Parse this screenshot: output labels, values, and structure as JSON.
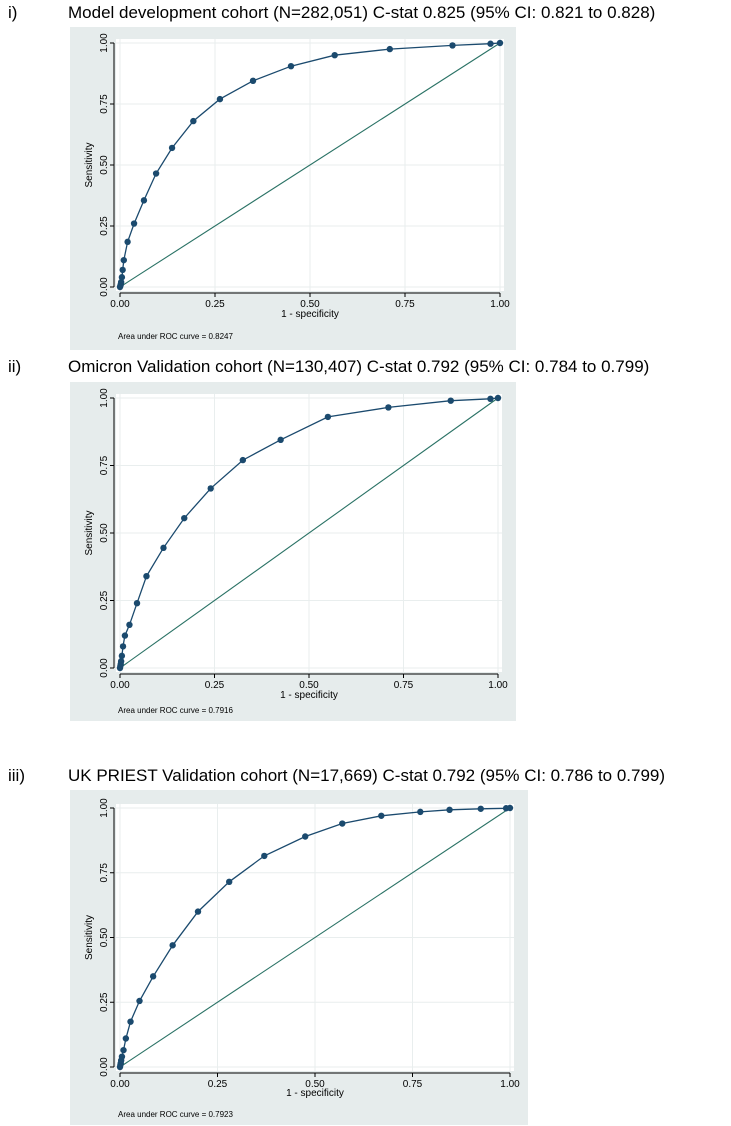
{
  "colors": {
    "frame_bg": "#e6ecec",
    "plot_bg": "#ffffff",
    "roc_line": "#1b4a6e",
    "roc_marker": "#1b4a6e",
    "reference_line": "#2a7265",
    "grid": "#e9eeee"
  },
  "chart_data": [
    {
      "type": "line",
      "panel_label": "i)",
      "title": "Model development cohort (N=282,051) C-stat 0.825 (95% CI:  0.821 to 0.828)",
      "xlabel": "1 - specificity",
      "ylabel": "Sensitivity",
      "xlim": [
        0,
        1
      ],
      "ylim": [
        0,
        1
      ],
      "x_ticks": [
        "0.00",
        "0.25",
        "0.50",
        "0.75",
        "1.00"
      ],
      "y_ticks": [
        "0.00",
        "0.25",
        "0.50",
        "0.75",
        "1.00"
      ],
      "grid": true,
      "note": "Area under ROC curve = 0.8247",
      "series": [
        {
          "x": [
            0,
            0.001,
            0.002,
            0.003,
            0.005,
            0.007,
            0.01,
            0.02,
            0.037,
            0.063,
            0.095,
            0.137,
            0.193,
            0.263,
            0.35,
            0.45,
            0.565,
            0.71,
            0.875,
            0.975,
            1.0
          ],
          "y": [
            0,
            0.005,
            0.01,
            0.02,
            0.04,
            0.07,
            0.11,
            0.185,
            0.26,
            0.355,
            0.465,
            0.57,
            0.68,
            0.77,
            0.845,
            0.905,
            0.95,
            0.975,
            0.99,
            0.997,
            1.0
          ]
        },
        {
          "x": [
            0,
            1
          ],
          "y": [
            0,
            1
          ]
        }
      ]
    },
    {
      "type": "line",
      "panel_label": "ii)",
      "title": "Omicron Validation cohort (N=130,407) C-stat 0.792 (95% CI: 0.784 to 0.799)",
      "xlabel": "1 - specificity",
      "ylabel": "Sensitivity",
      "xlim": [
        0,
        1
      ],
      "ylim": [
        0,
        1
      ],
      "x_ticks": [
        "0.00",
        "0.25",
        "0.50",
        "0.75",
        "1.00"
      ],
      "y_ticks": [
        "0.00",
        "0.25",
        "0.50",
        "0.75",
        "1.00"
      ],
      "grid": true,
      "note": "Area under ROC curve = 0.7916",
      "series": [
        {
          "x": [
            0,
            0.001,
            0.002,
            0.003,
            0.005,
            0.008,
            0.013,
            0.025,
            0.045,
            0.07,
            0.115,
            0.17,
            0.24,
            0.325,
            0.425,
            0.55,
            0.71,
            0.875,
            0.98,
            1.0
          ],
          "y": [
            0,
            0.008,
            0.015,
            0.025,
            0.045,
            0.08,
            0.12,
            0.16,
            0.24,
            0.34,
            0.445,
            0.555,
            0.665,
            0.77,
            0.845,
            0.93,
            0.965,
            0.99,
            0.997,
            1.0
          ]
        },
        {
          "x": [
            0,
            1
          ],
          "y": [
            0,
            1
          ]
        }
      ]
    },
    {
      "type": "line",
      "panel_label": "iii)",
      "title": "UK PRIEST Validation cohort (N=17,669) C-stat 0.792 (95% CI: 0.786  to 0.799)",
      "xlabel": "1 - specificity",
      "ylabel": "Sensitivity",
      "xlim": [
        0,
        1
      ],
      "ylim": [
        0,
        1
      ],
      "x_ticks": [
        "0.00",
        "0.25",
        "0.50",
        "0.75",
        "1.00"
      ],
      "y_ticks": [
        "0.00",
        "0.25",
        "0.50",
        "0.75",
        "1.00"
      ],
      "grid": true,
      "note": "Area under ROC curve = 0.7923",
      "series": [
        {
          "x": [
            0,
            0.001,
            0.002,
            0.003,
            0.005,
            0.009,
            0.015,
            0.027,
            0.05,
            0.085,
            0.135,
            0.2,
            0.28,
            0.37,
            0.475,
            0.57,
            0.67,
            0.77,
            0.845,
            0.925,
            0.99,
            1.0
          ],
          "y": [
            0,
            0.008,
            0.015,
            0.025,
            0.04,
            0.065,
            0.11,
            0.175,
            0.255,
            0.35,
            0.47,
            0.6,
            0.715,
            0.815,
            0.89,
            0.94,
            0.97,
            0.985,
            0.993,
            0.997,
            0.999,
            1.0
          ]
        },
        {
          "x": [
            0,
            1
          ],
          "y": [
            0,
            1
          ]
        }
      ]
    }
  ]
}
